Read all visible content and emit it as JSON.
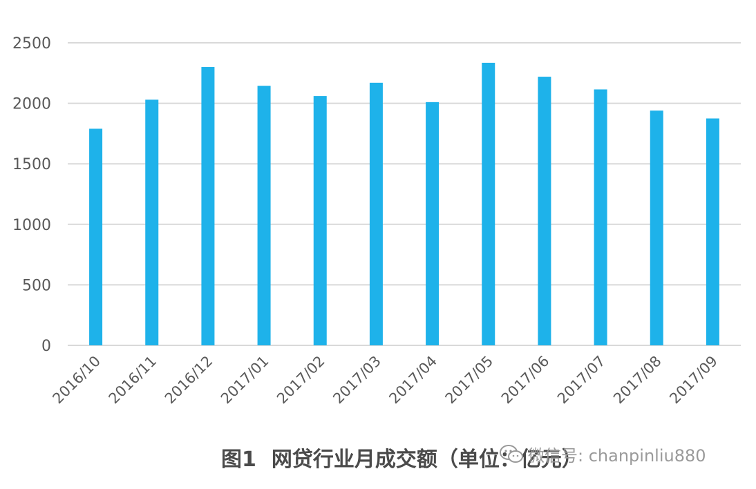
{
  "chart_data": {
    "type": "bar",
    "categories": [
      "2016/10",
      "2016/11",
      "2016/12",
      "2017/01",
      "2017/02",
      "2017/03",
      "2017/04",
      "2017/05",
      "2017/06",
      "2017/07",
      "2017/08",
      "2017/09"
    ],
    "values": [
      1790,
      2030,
      2300,
      2145,
      2060,
      2170,
      2010,
      2335,
      2220,
      2115,
      1940,
      1875
    ],
    "ylim": [
      0,
      2500
    ],
    "yticks": [
      0,
      500,
      1000,
      1500,
      2000,
      2500
    ],
    "grid": true,
    "bar_color": "#1eb2ea",
    "grid_color": "#d9d9d9",
    "tick_color": "#595959"
  },
  "caption": {
    "figure_label": "图1",
    "text": "网贷行业月成交额（单位：亿元）"
  },
  "watermark": {
    "text": "微信号: chanpinliu880",
    "icon": "wechat-icon"
  }
}
